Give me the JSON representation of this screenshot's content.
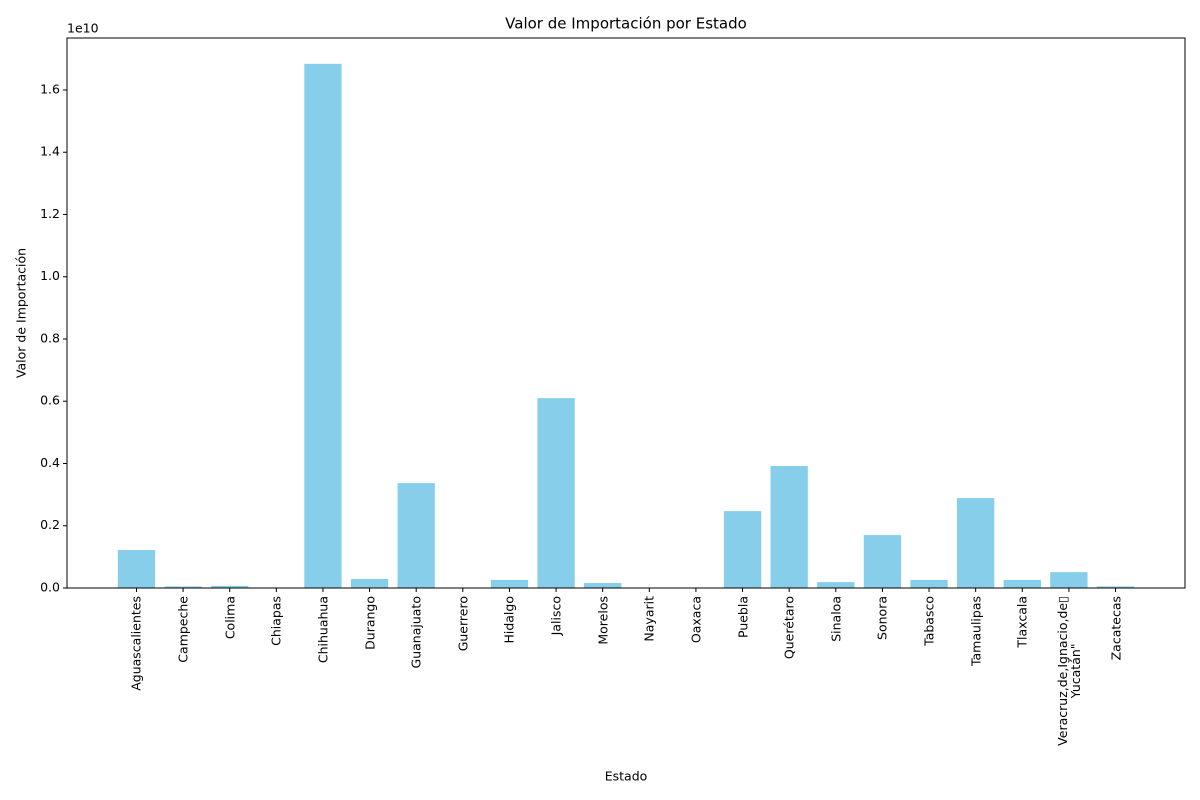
{
  "chart_data": {
    "type": "bar",
    "title": "Valor de Importación por Estado",
    "x_label": "Estado",
    "y_label": "Valor de Importación",
    "y_offset_label": "1e10",
    "categories": [
      "Aguascalientes",
      "Campeche",
      "Colima",
      "Chiapas",
      "Chihuahua",
      "Durango",
      "Guanajuato",
      "Guerrero",
      "Hidalgo",
      "Jalisco",
      "Morelos",
      "Nayarit",
      "Oaxaca",
      "Puebla",
      "Querétaro",
      "Sinaloa",
      "Sonora",
      "Tabasco",
      "Tamaulipas",
      "Tlaxcala",
      "Veracruz,de,Ignacio,de▯\nYucatán\"",
      "Zacatecas"
    ],
    "values": [
      1220000000,
      50000000,
      70000000,
      5000000,
      16840000000,
      290000000,
      3370000000,
      5000000,
      260000000,
      6100000000,
      160000000,
      3000000,
      3000000,
      2470000000,
      3920000000,
      190000000,
      1700000000,
      260000000,
      2890000000,
      260000000,
      510000000,
      50000000
    ],
    "color": "#87ceeb",
    "ylim": [
      0,
      17670000000
    ],
    "yticks": [
      {
        "value": 0,
        "label": "0.0"
      },
      {
        "value": 2000000000,
        "label": "0.2"
      },
      {
        "value": 4000000000,
        "label": "0.4"
      },
      {
        "value": 6000000000,
        "label": "0.6"
      },
      {
        "value": 8000000000,
        "label": "0.8"
      },
      {
        "value": 10000000000,
        "label": "1.0"
      },
      {
        "value": 12000000000,
        "label": "1.2"
      },
      {
        "value": 14000000000,
        "label": "1.4"
      },
      {
        "value": 16000000000,
        "label": "1.6"
      }
    ],
    "grid": false
  }
}
